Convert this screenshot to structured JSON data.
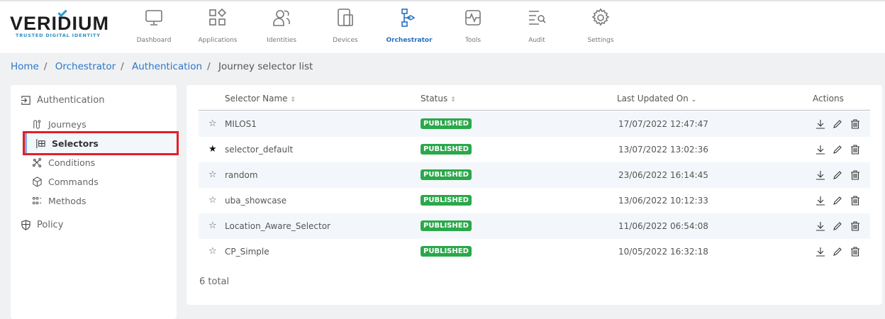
{
  "brand": {
    "name": "VERIDIUM",
    "tagline": "TRUSTED DIGITAL IDENTITY",
    "accent": "#2a9fd0"
  },
  "nav": [
    {
      "label": "Dashboard",
      "icon": "monitor-icon"
    },
    {
      "label": "Applications",
      "icon": "apps-grid-icon"
    },
    {
      "label": "Identities",
      "icon": "users-icon"
    },
    {
      "label": "Devices",
      "icon": "devices-icon"
    },
    {
      "label": "Orchestrator",
      "icon": "orchestrator-icon",
      "active": true
    },
    {
      "label": "Tools",
      "icon": "tools-icon"
    },
    {
      "label": "Audit",
      "icon": "audit-icon"
    },
    {
      "label": "Settings",
      "icon": "gear-icon"
    }
  ],
  "breadcrumb": [
    "Home",
    "Orchestrator",
    "Authentication",
    "Journey selector list"
  ],
  "sidebar": {
    "section": "Authentication",
    "items": [
      {
        "label": "Journeys"
      },
      {
        "label": "Selectors",
        "active": true
      },
      {
        "label": "Conditions"
      },
      {
        "label": "Commands"
      },
      {
        "label": "Methods"
      }
    ],
    "policy": "Policy"
  },
  "table": {
    "columns": [
      "Selector Name",
      "Status",
      "Last Updated On",
      "Actions"
    ],
    "rows": [
      {
        "name": "MILOS1",
        "starred": false,
        "status": "PUBLISHED",
        "updated": "17/07/2022 12:47:47"
      },
      {
        "name": "selector_default",
        "starred": true,
        "status": "PUBLISHED",
        "updated": "13/07/2022 13:02:36"
      },
      {
        "name": "random",
        "starred": false,
        "status": "PUBLISHED",
        "updated": "23/06/2022 16:14:45"
      },
      {
        "name": "uba_showcase",
        "starred": false,
        "status": "PUBLISHED",
        "updated": "13/06/2022 10:12:33"
      },
      {
        "name": "Location_Aware_Selector",
        "starred": false,
        "status": "PUBLISHED",
        "updated": "11/06/2022 06:54:08"
      },
      {
        "name": "CP_Simple",
        "starred": false,
        "status": "PUBLISHED",
        "updated": "10/05/2022 16:32:18"
      }
    ],
    "total": "6 total",
    "status_color": "#2aa84a"
  }
}
